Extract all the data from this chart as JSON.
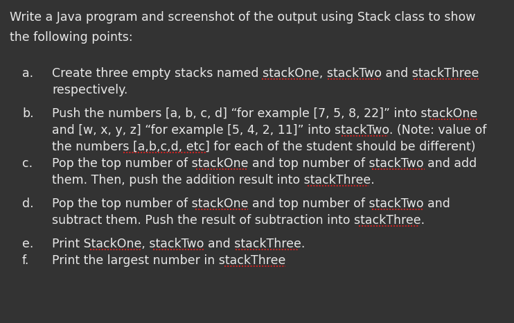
{
  "bg_color": "#333333",
  "text_color": "#e8e8e8",
  "underline_color": "#cc2222",
  "font_size": 12.5,
  "title_line1": "Write a Java program and screenshot of the output using Stack class to show",
  "title_line2": "the following points:",
  "items": [
    {
      "label": "a.",
      "lines": [
        {
          "text": "Create three empty stacks named stackOne, stackTwo and stackThree",
          "underlines": [
            "stackOne",
            "stackTwo",
            "stackThree"
          ]
        },
        {
          "text": "respectively.",
          "underlines": []
        }
      ],
      "extra_gap_after": true
    },
    {
      "label": "b.",
      "lines": [
        {
          "text": "Push the numbers [a, b, c, d] “for example [7, 5, 8, 22]” into stackOne",
          "underlines": [
            "stackOne"
          ]
        },
        {
          "text": "and [w, x, y, z] “for example [5, 4, 2, 11]” into stackTwo. (Note: value of",
          "underlines": [
            "stackTwo"
          ]
        },
        {
          "text": "the numbers [a,b,c,d, etc] for each of the student should be different)",
          "underlines": [
            "[a,b,c,d, etc]"
          ]
        }
      ],
      "extra_gap_after": false
    },
    {
      "label": "c.",
      "lines": [
        {
          "text": "Pop the top number of stackOne and top number of stackTwo and add",
          "underlines": [
            "stackOne",
            "stackTwo"
          ]
        },
        {
          "text": "them. Then, push the addition result into stackThree.",
          "underlines": [
            "stackThree"
          ]
        }
      ],
      "extra_gap_after": true
    },
    {
      "label": "d.",
      "lines": [
        {
          "text": "Pop the top number of stackOne and top number of stackTwo and",
          "underlines": [
            "stackOne",
            "stackTwo"
          ]
        },
        {
          "text": "subtract them. Push the result of subtraction into stackThree.",
          "underlines": [
            "stackThree"
          ]
        }
      ],
      "extra_gap_after": true
    },
    {
      "label": "e.",
      "lines": [
        {
          "text": "Print StackOne, stackTwo and stackThree.",
          "underlines": [
            "StackOne",
            "stackTwo",
            "stackThree"
          ]
        }
      ],
      "extra_gap_after": false
    },
    {
      "label": "f.",
      "lines": [
        {
          "text": "Print the largest number in stackThree",
          "underlines": [
            "stackThree"
          ]
        }
      ],
      "extra_gap_after": false
    }
  ]
}
